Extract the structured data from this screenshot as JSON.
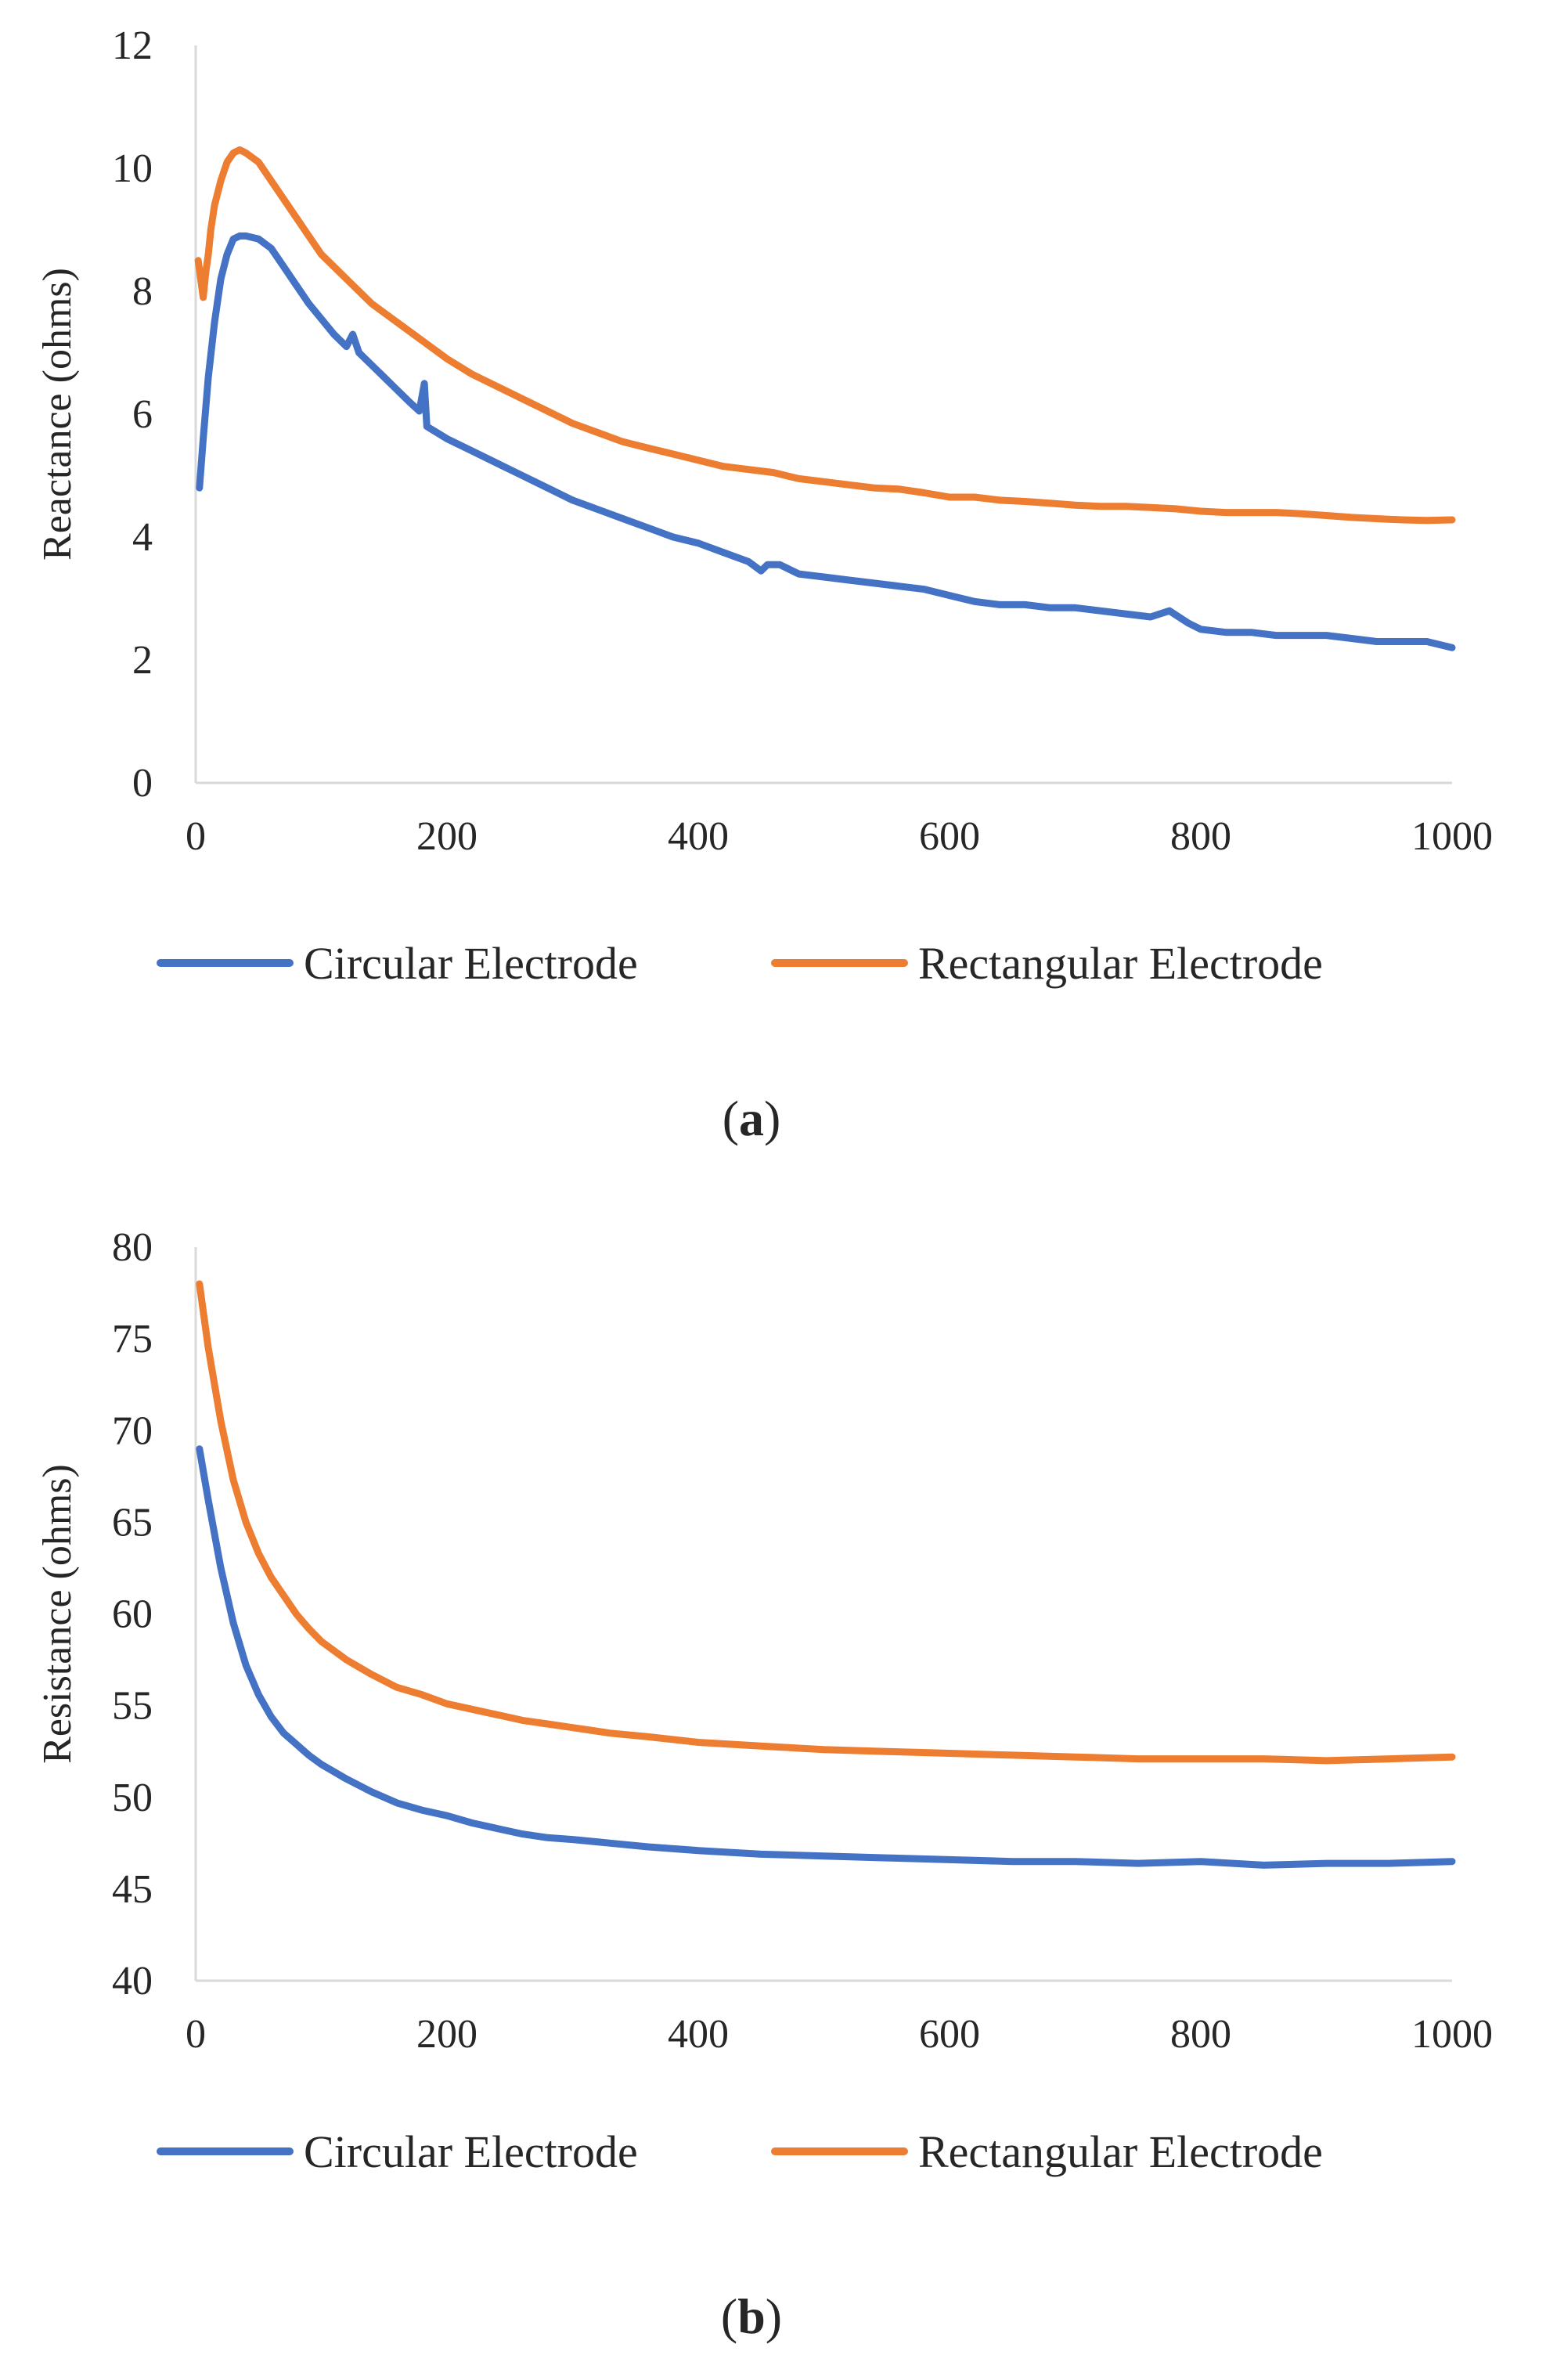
{
  "colors": {
    "circular": "#4472C4",
    "rectangular": "#ED7D31",
    "axis": "#D9D9D9",
    "text": "#262626"
  },
  "panels": [
    {
      "label_open": "(",
      "label_letter": "a",
      "label_close": ")"
    },
    {
      "label_open": "(",
      "label_letter": "b",
      "label_close": ")"
    }
  ],
  "chart_data": [
    {
      "type": "line",
      "title": "",
      "xlabel": "",
      "ylabel": "Reactance (ohms)",
      "xlim": [
        0,
        1000
      ],
      "ylim": [
        0,
        12
      ],
      "xticks": [
        0,
        200,
        400,
        600,
        800,
        1000
      ],
      "yticks": [
        0,
        2,
        4,
        6,
        8,
        10,
        12
      ],
      "grid": false,
      "legend": "bottom",
      "series": [
        {
          "name": "Circular Electrode",
          "x": [
            3,
            6,
            10,
            15,
            20,
            25,
            30,
            35,
            40,
            50,
            60,
            70,
            80,
            90,
            100,
            110,
            120,
            125,
            130,
            140,
            150,
            160,
            170,
            178,
            182,
            184,
            188,
            200,
            220,
            240,
            260,
            280,
            300,
            320,
            340,
            360,
            380,
            400,
            420,
            440,
            450,
            455,
            465,
            480,
            500,
            520,
            540,
            560,
            580,
            600,
            620,
            640,
            660,
            680,
            700,
            720,
            740,
            760,
            775,
            790,
            800,
            820,
            840,
            860,
            880,
            900,
            920,
            940,
            960,
            980,
            1000
          ],
          "y": [
            4.8,
            5.6,
            6.6,
            7.5,
            8.2,
            8.6,
            8.85,
            8.9,
            8.9,
            8.85,
            8.7,
            8.4,
            8.1,
            7.8,
            7.55,
            7.3,
            7.1,
            7.3,
            7.0,
            6.8,
            6.6,
            6.4,
            6.2,
            6.05,
            6.5,
            5.8,
            5.75,
            5.6,
            5.4,
            5.2,
            5.0,
            4.8,
            4.6,
            4.45,
            4.3,
            4.15,
            4.0,
            3.9,
            3.75,
            3.6,
            3.45,
            3.55,
            3.55,
            3.4,
            3.35,
            3.3,
            3.25,
            3.2,
            3.15,
            3.05,
            2.95,
            2.9,
            2.9,
            2.85,
            2.85,
            2.8,
            2.75,
            2.7,
            2.8,
            2.6,
            2.5,
            2.45,
            2.45,
            2.4,
            2.4,
            2.4,
            2.35,
            2.3,
            2.3,
            2.3,
            2.2
          ]
        },
        {
          "name": "Rectangular Electrode",
          "x": [
            2,
            4,
            6,
            8,
            10,
            12,
            15,
            20,
            25,
            30,
            35,
            40,
            50,
            60,
            70,
            80,
            90,
            100,
            120,
            140,
            160,
            180,
            200,
            220,
            240,
            260,
            280,
            300,
            320,
            340,
            360,
            380,
            400,
            420,
            440,
            460,
            480,
            500,
            520,
            540,
            560,
            580,
            600,
            620,
            640,
            660,
            680,
            700,
            720,
            740,
            760,
            780,
            800,
            820,
            840,
            860,
            880,
            900,
            920,
            940,
            960,
            980,
            1000
          ],
          "y": [
            8.5,
            8.2,
            7.9,
            8.3,
            8.6,
            9.0,
            9.4,
            9.8,
            10.1,
            10.25,
            10.3,
            10.25,
            10.1,
            9.8,
            9.5,
            9.2,
            8.9,
            8.6,
            8.2,
            7.8,
            7.5,
            7.2,
            6.9,
            6.65,
            6.45,
            6.25,
            6.05,
            5.85,
            5.7,
            5.55,
            5.45,
            5.35,
            5.25,
            5.15,
            5.1,
            5.05,
            4.95,
            4.9,
            4.85,
            4.8,
            4.78,
            4.72,
            4.65,
            4.65,
            4.6,
            4.58,
            4.55,
            4.52,
            4.5,
            4.5,
            4.48,
            4.46,
            4.42,
            4.4,
            4.4,
            4.4,
            4.38,
            4.35,
            4.32,
            4.3,
            4.28,
            4.27,
            4.28
          ]
        }
      ]
    },
    {
      "type": "line",
      "title": "",
      "xlabel": "",
      "ylabel": "Resistance (ohms)",
      "xlim": [
        0,
        1000
      ],
      "ylim": [
        40,
        80
      ],
      "xticks": [
        0,
        200,
        400,
        600,
        800,
        1000
      ],
      "yticks": [
        40,
        45,
        50,
        55,
        60,
        65,
        70,
        75,
        80
      ],
      "grid": false,
      "legend": "bottom",
      "series": [
        {
          "name": "Circular Electrode",
          "x": [
            3,
            10,
            20,
            30,
            40,
            50,
            60,
            70,
            80,
            90,
            100,
            120,
            140,
            160,
            180,
            200,
            220,
            240,
            260,
            280,
            300,
            330,
            360,
            400,
            450,
            500,
            550,
            600,
            650,
            700,
            750,
            800,
            850,
            900,
            950,
            1000
          ],
          "y": [
            69.0,
            66.2,
            62.5,
            59.5,
            57.2,
            55.6,
            54.4,
            53.5,
            52.9,
            52.3,
            51.8,
            51.0,
            50.3,
            49.7,
            49.3,
            49.0,
            48.6,
            48.3,
            48.0,
            47.8,
            47.7,
            47.5,
            47.3,
            47.1,
            46.9,
            46.8,
            46.7,
            46.6,
            46.5,
            46.5,
            46.4,
            46.5,
            46.3,
            46.4,
            46.4,
            46.5
          ]
        },
        {
          "name": "Rectangular Electrode",
          "x": [
            3,
            10,
            20,
            30,
            40,
            50,
            60,
            70,
            80,
            90,
            100,
            120,
            140,
            160,
            180,
            200,
            220,
            240,
            260,
            280,
            300,
            330,
            360,
            400,
            450,
            500,
            550,
            600,
            650,
            700,
            750,
            800,
            850,
            900,
            950,
            1000
          ],
          "y": [
            78.0,
            74.5,
            70.5,
            67.3,
            65.0,
            63.3,
            62.0,
            61.0,
            60.0,
            59.2,
            58.5,
            57.5,
            56.7,
            56.0,
            55.6,
            55.1,
            54.8,
            54.5,
            54.2,
            54.0,
            53.8,
            53.5,
            53.3,
            53.0,
            52.8,
            52.6,
            52.5,
            52.4,
            52.3,
            52.2,
            52.1,
            52.1,
            52.1,
            52.0,
            52.1,
            52.2
          ]
        }
      ]
    }
  ]
}
